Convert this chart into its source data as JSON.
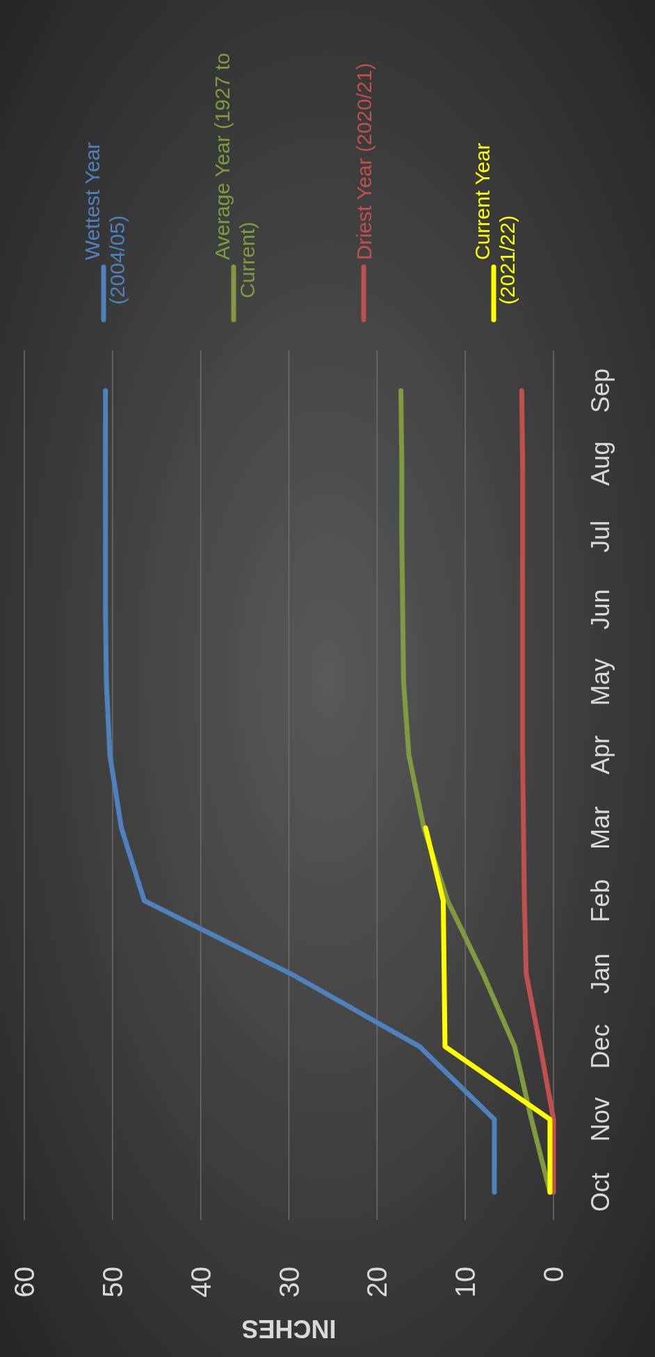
{
  "chart_data": {
    "type": "line",
    "orientation": "horizontal",
    "xlabel": "INCHES",
    "categories": [
      "Sep",
      "Aug",
      "Jul",
      "Jun",
      "May",
      "Apr",
      "Mar",
      "Feb",
      "Jan",
      "Dec",
      "Nov",
      "Oct"
    ],
    "series": [
      {
        "name": "Wettest Year (2004/05)",
        "color": "#4f81bd",
        "values": [
          50.8,
          50.8,
          50.8,
          50.8,
          50.7,
          50.3,
          49,
          46.4,
          29.8,
          15.2,
          6.7,
          6.7
        ]
      },
      {
        "name": "Average Year (1927 to Current)",
        "color": "#7f9a3f",
        "values": [
          17.3,
          17.2,
          17.2,
          17.1,
          17,
          16.4,
          14.7,
          12,
          8,
          4.4,
          2.5,
          0.4
        ]
      },
      {
        "name": "Driest Year (2020/21)",
        "color": "#c0504d",
        "values": [
          3.6,
          3.5,
          3.5,
          3.5,
          3.5,
          3.5,
          3.4,
          3.3,
          3.1,
          1.5,
          0,
          0
        ]
      },
      {
        "name": "Current Year (2021/22)",
        "color": "#ffff00",
        "values": [
          null,
          null,
          null,
          null,
          null,
          null,
          14.5,
          12.5,
          12.4,
          12.3,
          0.4,
          0.4
        ]
      }
    ],
    "xlim": [
      60,
      0
    ],
    "xticks": [
      60,
      50,
      40,
      30,
      20,
      10,
      0
    ],
    "grid": "x",
    "legend": "top",
    "marker": "none",
    "line_style": "solid"
  }
}
